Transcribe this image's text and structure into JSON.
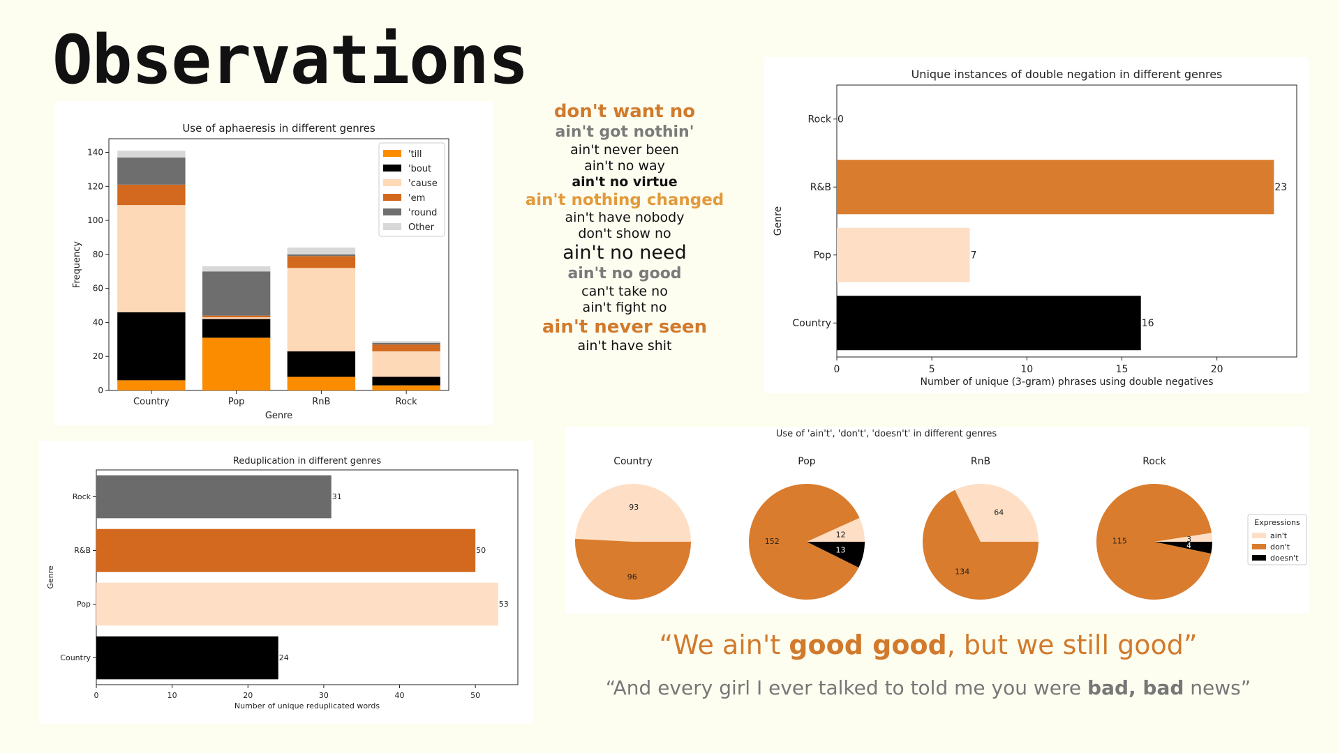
{
  "page": {
    "title": "Observations"
  },
  "chart_data": [
    {
      "id": "aphaeresis",
      "type": "bar",
      "stacked": true,
      "title": "Use of aphaeresis in different genres",
      "xlabel": "Genre",
      "ylabel": "Frequency",
      "categories": [
        "Country",
        "Pop",
        "RnB",
        "Rock"
      ],
      "ylim": [
        0,
        148
      ],
      "yticks": [
        0,
        20,
        40,
        60,
        80,
        100,
        120,
        140
      ],
      "legend_position": "top-right",
      "series": [
        {
          "name": "'till",
          "color": "#fb8c00",
          "values": [
            6,
            31,
            8,
            3
          ]
        },
        {
          "name": "'bout",
          "color": "#000000",
          "values": [
            40,
            11,
            15,
            5
          ]
        },
        {
          "name": "'cause",
          "color": "#fed9b8",
          "values": [
            63,
            1,
            49,
            15
          ]
        },
        {
          "name": "'em",
          "color": "#d2691e",
          "values": [
            12,
            1,
            7,
            4
          ]
        },
        {
          "name": "'round",
          "color": "#6e6e6e",
          "values": [
            16,
            26,
            1,
            1
          ]
        },
        {
          "name": "Other",
          "color": "#d8d8d8",
          "values": [
            4,
            3,
            4,
            1
          ]
        }
      ]
    },
    {
      "id": "double-negation",
      "type": "bar",
      "orientation": "horizontal",
      "title": "Unique instances of double negation in different genres",
      "xlabel": "Number of unique (3-gram) phrases using double negatives",
      "ylabel": "Genre",
      "categories": [
        "Country",
        "Pop",
        "R&B",
        "Rock"
      ],
      "values": [
        16,
        7,
        23,
        0
      ],
      "colors": [
        "#000000",
        "#fedfc6",
        "#da7c2d",
        "#fb8c00"
      ],
      "xlim": [
        0,
        24.2
      ],
      "xticks": [
        0,
        5,
        10,
        15,
        20
      ]
    },
    {
      "id": "reduplication",
      "type": "bar",
      "orientation": "horizontal",
      "title": "Reduplication in different genres",
      "xlabel": "Number of unique reduplicated words",
      "ylabel": "Genre",
      "categories": [
        "Country",
        "Pop",
        "R&B",
        "Rock"
      ],
      "values": [
        24,
        53,
        50,
        31
      ],
      "colors": [
        "#000000",
        "#fedfc6",
        "#d2691e",
        "#6b6b6b"
      ],
      "xlim": [
        0,
        55.6
      ],
      "xticks": [
        0,
        10,
        20,
        30,
        40,
        50
      ]
    },
    {
      "id": "expressions",
      "type": "pie",
      "title": "Use of 'ain't', 'don't', 'doesn't' in different genres",
      "legend_title": "Expressions",
      "legend_position": "right",
      "series_names": [
        "ain't",
        "don't",
        "doesn't"
      ],
      "colors": [
        "#fedfc6",
        "#da7c2d",
        "#000000"
      ],
      "pies": [
        {
          "name": "Country",
          "values": [
            93,
            96,
            0
          ]
        },
        {
          "name": "Pop",
          "values": [
            12,
            152,
            13
          ]
        },
        {
          "name": "RnB",
          "values": [
            64,
            134,
            0
          ]
        },
        {
          "name": "Rock",
          "values": [
            3,
            115,
            4
          ]
        }
      ]
    }
  ],
  "phrases": [
    {
      "text": "don't want no",
      "size": 26,
      "color": "#d17a2c",
      "weight": "bold"
    },
    {
      "text": "ain't got nothin'",
      "size": 22,
      "color": "#7a7a7a",
      "weight": "bold"
    },
    {
      "text": "ain't never been",
      "size": 19,
      "color": "#111111",
      "weight": "normal"
    },
    {
      "text": "ain't no way",
      "size": 19,
      "color": "#111111",
      "weight": "normal"
    },
    {
      "text": "ain't no virtue",
      "size": 19,
      "color": "#111111",
      "weight": "bold"
    },
    {
      "text": "ain't nothing changed",
      "size": 23,
      "color": "#e29a3c",
      "weight": "bold"
    },
    {
      "text": "ain't have nobody",
      "size": 19,
      "color": "#111111",
      "weight": "normal"
    },
    {
      "text": "don't show no",
      "size": 19,
      "color": "#111111",
      "weight": "normal"
    },
    {
      "text": "ain't no need",
      "size": 27,
      "color": "#111111",
      "weight": "normal"
    },
    {
      "text": "ain't no good",
      "size": 22,
      "color": "#7a7a7a",
      "weight": "bold"
    },
    {
      "text": "can't take no",
      "size": 19,
      "color": "#111111",
      "weight": "normal"
    },
    {
      "text": "ain't fight no",
      "size": 19,
      "color": "#111111",
      "weight": "normal"
    },
    {
      "text": "ain't never seen",
      "size": 26,
      "color": "#d17a2c",
      "weight": "bold"
    },
    {
      "text": "ain't have shit",
      "size": 19,
      "color": "#111111",
      "weight": "normal"
    }
  ],
  "quotes": {
    "q1": {
      "before": "“We ain't ",
      "bold": "good good",
      "after": ", but we still good”"
    },
    "q2": {
      "before": "“And every girl I ever talked to told me you were ",
      "bold": "bad, bad",
      "after": " news”"
    }
  }
}
